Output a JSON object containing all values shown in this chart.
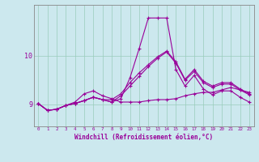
{
  "background_color": "#cce8ee",
  "grid_color": "#99ccbb",
  "line_color": "#990099",
  "x_label": "Windchill (Refroidissement éolien,°C)",
  "y_ticks": [
    9,
    10
  ],
  "x_ticks": [
    0,
    1,
    2,
    3,
    4,
    5,
    6,
    7,
    8,
    9,
    10,
    11,
    12,
    13,
    14,
    15,
    16,
    17,
    18,
    19,
    20,
    21,
    22,
    23
  ],
  "xlim": [
    -0.5,
    23.5
  ],
  "ylim": [
    8.55,
    11.05
  ],
  "series_spike": [
    9.02,
    8.88,
    8.9,
    8.98,
    9.02,
    9.08,
    9.15,
    9.1,
    9.05,
    9.12,
    9.55,
    10.15,
    10.78,
    10.78,
    10.78,
    9.72,
    9.38,
    9.6,
    9.32,
    9.2,
    9.28,
    9.28,
    9.15,
    9.05
  ],
  "series_diag1": [
    9.02,
    8.88,
    8.9,
    8.98,
    9.02,
    9.08,
    9.15,
    9.1,
    9.05,
    9.18,
    9.38,
    9.58,
    9.78,
    9.95,
    10.08,
    9.85,
    9.5,
    9.68,
    9.45,
    9.35,
    9.42,
    9.42,
    9.3,
    9.2
  ],
  "series_diag2": [
    9.02,
    8.88,
    8.9,
    8.98,
    9.02,
    9.08,
    9.15,
    9.1,
    9.1,
    9.22,
    9.45,
    9.65,
    9.82,
    9.98,
    10.1,
    9.88,
    9.52,
    9.72,
    9.48,
    9.38,
    9.45,
    9.45,
    9.32,
    9.22
  ],
  "series_flat": [
    9.02,
    8.88,
    8.9,
    8.98,
    9.05,
    9.22,
    9.28,
    9.18,
    9.12,
    9.05,
    9.05,
    9.05,
    9.08,
    9.1,
    9.1,
    9.12,
    9.18,
    9.22,
    9.25,
    9.25,
    9.3,
    9.35,
    9.3,
    9.25
  ]
}
